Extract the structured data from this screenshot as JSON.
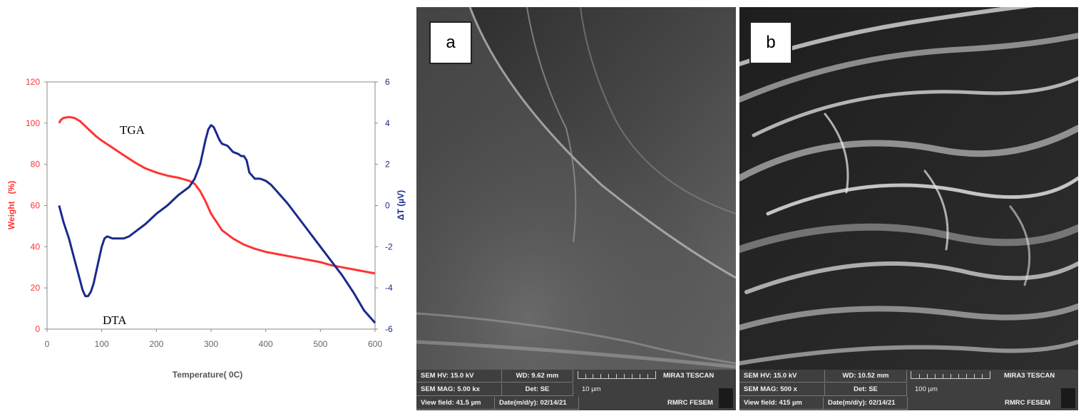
{
  "chart_data": {
    "type": "line",
    "xlabel": "Temperature( 0C)",
    "ylabel": "Weight   (%)",
    "y2label": "ΔT (µV)",
    "xlim": [
      0,
      600
    ],
    "ylim": [
      0,
      120
    ],
    "y2lim": [
      -6,
      6
    ],
    "xticks": [
      0,
      100,
      200,
      300,
      400,
      500,
      600
    ],
    "yticks": [
      0,
      20,
      40,
      60,
      80,
      100,
      120
    ],
    "y2ticks": [
      -6,
      -4,
      -2,
      0,
      2,
      4,
      6
    ],
    "grid": false,
    "annotations": [
      {
        "text": "TGA",
        "x": 165,
        "y": 97
      },
      {
        "text": "DTA",
        "x": 100,
        "y": 3
      }
    ],
    "series": [
      {
        "name": "TGA",
        "axis": "left",
        "color": "#ff3333",
        "x": [
          22,
          25,
          30,
          40,
          50,
          60,
          70,
          80,
          90,
          100,
          120,
          140,
          160,
          180,
          200,
          220,
          240,
          260,
          270,
          280,
          290,
          300,
          310,
          320,
          340,
          360,
          380,
          400,
          420,
          450,
          480,
          500,
          520,
          540,
          560,
          580,
          600
        ],
        "values": [
          100,
          101.5,
          102.5,
          103,
          102.5,
          101,
          98.5,
          96,
          93.5,
          91.5,
          88,
          84.5,
          81,
          78,
          76,
          74.5,
          73.5,
          72,
          70.5,
          67,
          62,
          56,
          52,
          48,
          44,
          41,
          39,
          37.5,
          36.5,
          35,
          33.5,
          32.5,
          31,
          30,
          29,
          28,
          27
        ]
      },
      {
        "name": "DTA",
        "axis": "right",
        "color": "#1a2a8c",
        "x": [
          22,
          30,
          40,
          50,
          60,
          65,
          70,
          75,
          80,
          85,
          90,
          95,
          100,
          105,
          110,
          120,
          130,
          140,
          150,
          160,
          180,
          200,
          220,
          240,
          260,
          270,
          280,
          285,
          290,
          295,
          300,
          305,
          310,
          315,
          320,
          330,
          340,
          350,
          355,
          360,
          365,
          370,
          380,
          390,
          400,
          410,
          420,
          440,
          460,
          480,
          500,
          520,
          540,
          560,
          580,
          600
        ],
        "values": [
          0,
          -0.8,
          -1.6,
          -2.6,
          -3.6,
          -4.1,
          -4.4,
          -4.4,
          -4.2,
          -3.8,
          -3.2,
          -2.6,
          -2.0,
          -1.6,
          -1.5,
          -1.6,
          -1.6,
          -1.6,
          -1.5,
          -1.3,
          -0.9,
          -0.4,
          0.0,
          0.5,
          0.9,
          1.3,
          2.0,
          2.6,
          3.2,
          3.7,
          3.9,
          3.8,
          3.5,
          3.2,
          3.0,
          2.9,
          2.6,
          2.5,
          2.4,
          2.4,
          2.2,
          1.6,
          1.3,
          1.3,
          1.2,
          1.0,
          0.7,
          0.1,
          -0.6,
          -1.3,
          -2.0,
          -2.7,
          -3.4,
          -4.2,
          -5.1,
          -5.7
        ]
      }
    ]
  },
  "sem_a": {
    "panel_label": "a",
    "hv": "SEM HV: 15.0 kV",
    "wd": "WD: 9.62 mm",
    "mag": "SEM MAG: 5.00 kx",
    "det": "Det: SE",
    "field": "View field: 41.5 µm",
    "date": "Date(m/d/y): 02/14/21",
    "scale": "10 µm",
    "brand": "MIRA3 TESCAN",
    "lab": "RMRC  FESEM"
  },
  "sem_b": {
    "panel_label": "b",
    "hv": "SEM HV: 15.0 kV",
    "wd": "WD: 10.52 mm",
    "mag": "SEM MAG: 500 x",
    "det": "Det: SE",
    "field": "View field: 415 µm",
    "date": "Date(m/d/y): 02/14/21",
    "scale": "100 µm",
    "brand": "MIRA3 TESCAN",
    "lab": "RMRC  FESEM"
  },
  "colors": {
    "left_axis": "#ff3333",
    "right_axis": "#1a2a8c",
    "axis_text": "#888888"
  }
}
